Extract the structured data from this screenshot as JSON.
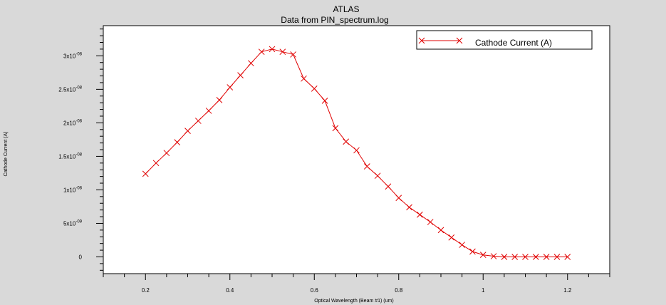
{
  "chart_data": {
    "type": "line",
    "title": "ATLAS",
    "subtitle": "Data from PIN_spectrum.log",
    "xlabel": "Optical Wavelength (Beam #1) (um)",
    "ylabel": "Cathode Current (A)",
    "xlim": [
      0.1,
      1.3
    ],
    "ylim": [
      -2.5e-09,
      3.45e-08
    ],
    "x_ticks": [
      {
        "value": 0.2,
        "label": "0.2"
      },
      {
        "value": 0.4,
        "label": "0.4"
      },
      {
        "value": 0.6,
        "label": "0.6"
      },
      {
        "value": 0.8,
        "label": "0.8"
      },
      {
        "value": 1.0,
        "label": "1"
      },
      {
        "value": 1.2,
        "label": "1.2"
      }
    ],
    "y_ticks": [
      {
        "value": 0,
        "mant": "0",
        "exp": ""
      },
      {
        "value": 5e-09,
        "mant": "5x10",
        "exp": "-09"
      },
      {
        "value": 1e-08,
        "mant": "1x10",
        "exp": "-08"
      },
      {
        "value": 1.5e-08,
        "mant": "1.5x10",
        "exp": "-08"
      },
      {
        "value": 2e-08,
        "mant": "2x10",
        "exp": "-08"
      },
      {
        "value": 2.5e-08,
        "mant": "2.5x10",
        "exp": "-08"
      },
      {
        "value": 3e-08,
        "mant": "3x10",
        "exp": "-08"
      }
    ],
    "legend_position": "top-right",
    "series": [
      {
        "name": "Cathode Current (A)",
        "color": "#e00000",
        "marker": "x",
        "x": [
          0.2,
          0.225,
          0.25,
          0.275,
          0.3,
          0.325,
          0.35,
          0.375,
          0.4,
          0.425,
          0.45,
          0.475,
          0.5,
          0.525,
          0.55,
          0.575,
          0.6,
          0.625,
          0.65,
          0.675,
          0.7,
          0.725,
          0.75,
          0.775,
          0.8,
          0.825,
          0.85,
          0.875,
          0.9,
          0.925,
          0.95,
          0.975,
          1.0,
          1.025,
          1.05,
          1.075,
          1.1,
          1.125,
          1.15,
          1.175,
          1.2
        ],
        "y": [
          1.24e-08,
          1.4e-08,
          1.55e-08,
          1.71e-08,
          1.88e-08,
          2.03e-08,
          2.18e-08,
          2.34e-08,
          2.53e-08,
          2.71e-08,
          2.89e-08,
          3.06e-08,
          3.1e-08,
          3.06e-08,
          3.02e-08,
          2.66e-08,
          2.51e-08,
          2.33e-08,
          1.92e-08,
          1.72e-08,
          1.59e-08,
          1.35e-08,
          1.21e-08,
          1.05e-08,
          8.8e-09,
          7.4e-09,
          6.3e-09,
          5.2e-09,
          4e-09,
          2.9e-09,
          1.8e-09,
          8e-10,
          3e-10,
          1e-10,
          0,
          0,
          0,
          0,
          0,
          0,
          0
        ]
      }
    ]
  }
}
